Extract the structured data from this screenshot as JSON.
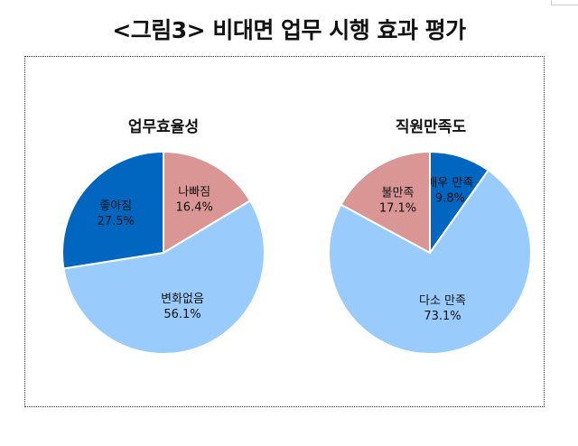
{
  "figure": {
    "title": "<그림3> 비대면 업무 시행 효과 평가"
  },
  "colors": {
    "dark_blue": "#0066c0",
    "light_blue": "#99ccfc",
    "rose": "#d99694",
    "stroke": "#ffffff",
    "text": "#111111"
  },
  "chart_data": [
    {
      "type": "pie",
      "title": "업무효율성",
      "slices": [
        {
          "label": "나빠짐",
          "value": 16.4,
          "value_label": "16.4%",
          "color": "#d99694"
        },
        {
          "label": "변화없음",
          "value": 56.1,
          "value_label": "56.1%",
          "color": "#99ccfc"
        },
        {
          "label": "좋아짐",
          "value": 27.5,
          "value_label": "27.5%",
          "color": "#0066c0"
        }
      ],
      "start_angle_deg": 0,
      "direction": "clockwise",
      "legend": "none"
    },
    {
      "type": "pie",
      "title": "직원만족도",
      "slices": [
        {
          "label": "매우 만족",
          "value": 9.8,
          "value_label": "9.8%",
          "color": "#0066c0"
        },
        {
          "label": "다소 만족",
          "value": 73.1,
          "value_label": "73.1%",
          "color": "#99ccfc"
        },
        {
          "label": "불만족",
          "value": 17.1,
          "value_label": "17.1%",
          "color": "#d99694"
        }
      ],
      "start_angle_deg": 0,
      "direction": "clockwise",
      "legend": "none"
    }
  ]
}
